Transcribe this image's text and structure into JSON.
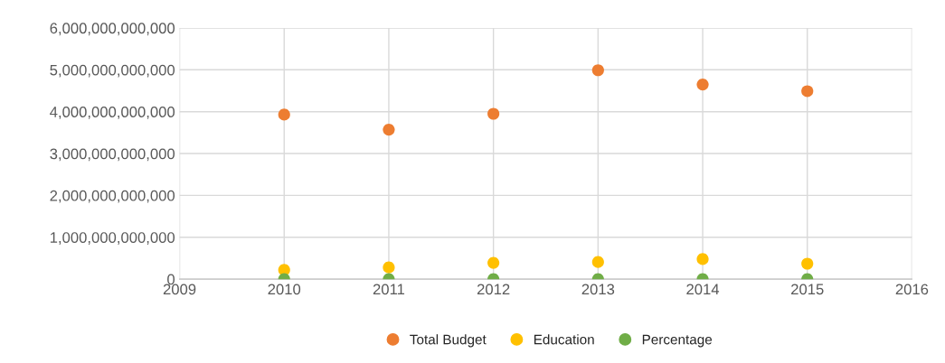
{
  "chart_data": {
    "type": "scatter",
    "x": [
      2010,
      2011,
      2012,
      2013,
      2014,
      2015
    ],
    "series": [
      {
        "name": "Total Budget",
        "color": "#ed7d31",
        "values": [
          3930000000000,
          3570000000000,
          3950000000000,
          4990000000000,
          4650000000000,
          4490000000000
        ]
      },
      {
        "name": "Education",
        "color": "#ffc000",
        "values": [
          220000000000,
          280000000000,
          390000000000,
          410000000000,
          480000000000,
          370000000000
        ]
      },
      {
        "name": "Percentage",
        "color": "#70ad47",
        "values": [
          0,
          0,
          0,
          0,
          0,
          0
        ]
      }
    ],
    "xlim": [
      2009,
      2016
    ],
    "xticks": [
      2009,
      2010,
      2011,
      2012,
      2013,
      2014,
      2015,
      2016
    ],
    "ylim": [
      0,
      6000000000000
    ],
    "yticks": [
      0,
      {
        "value": 1000000000000,
        "label": "1,000,000,000,000"
      },
      {
        "value": 2000000000000,
        "label": "2,000,000,000,000"
      },
      {
        "value": 3000000000000,
        "label": "3,000,000,000,000"
      },
      {
        "value": 4000000000000,
        "label": "4,000,000,000,000"
      },
      {
        "value": 5000000000000,
        "label": "5,000,000,000,000"
      },
      {
        "value": 6000000000000,
        "label": "6,000,000,000,000"
      }
    ],
    "grid": true,
    "legend": "bottom",
    "marker": "circle"
  }
}
